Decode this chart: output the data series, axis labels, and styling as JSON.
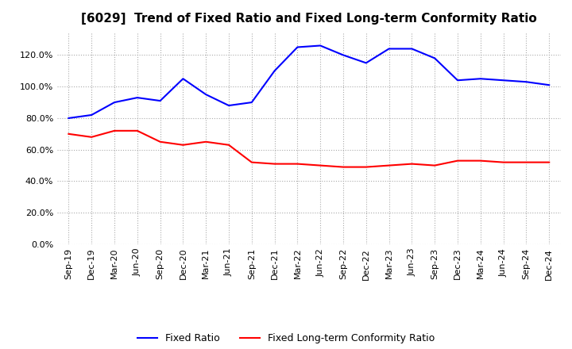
{
  "title": "[6029]  Trend of Fixed Ratio and Fixed Long-term Conformity Ratio",
  "x_labels": [
    "Sep-19",
    "Dec-19",
    "Mar-20",
    "Jun-20",
    "Sep-20",
    "Dec-20",
    "Mar-21",
    "Jun-21",
    "Sep-21",
    "Dec-21",
    "Mar-22",
    "Jun-22",
    "Sep-22",
    "Dec-22",
    "Mar-23",
    "Jun-23",
    "Sep-23",
    "Dec-23",
    "Mar-24",
    "Jun-24",
    "Sep-24",
    "Dec-24"
  ],
  "fixed_ratio": [
    80.0,
    82.0,
    90.0,
    93.0,
    91.0,
    105.0,
    95.0,
    88.0,
    90.0,
    110.0,
    125.0,
    126.0,
    120.0,
    115.0,
    124.0,
    124.0,
    118.0,
    104.0,
    105.0,
    104.0,
    103.0,
    101.0
  ],
  "fixed_lt_ratio": [
    70.0,
    68.0,
    72.0,
    72.0,
    65.0,
    63.0,
    65.0,
    63.0,
    52.0,
    51.0,
    51.0,
    50.0,
    49.0,
    49.0,
    50.0,
    51.0,
    50.0,
    53.0,
    53.0,
    52.0,
    52.0,
    52.0
  ],
  "fixed_ratio_color": "#0000ff",
  "fixed_lt_ratio_color": "#ff0000",
  "ylim": [
    0.0,
    135.0
  ],
  "yticks": [
    0.0,
    20.0,
    40.0,
    60.0,
    80.0,
    100.0,
    120.0
  ],
  "background_color": "#ffffff",
  "grid_color": "#aaaaaa",
  "title_fontsize": 11,
  "legend_fontsize": 9,
  "tick_fontsize": 8
}
